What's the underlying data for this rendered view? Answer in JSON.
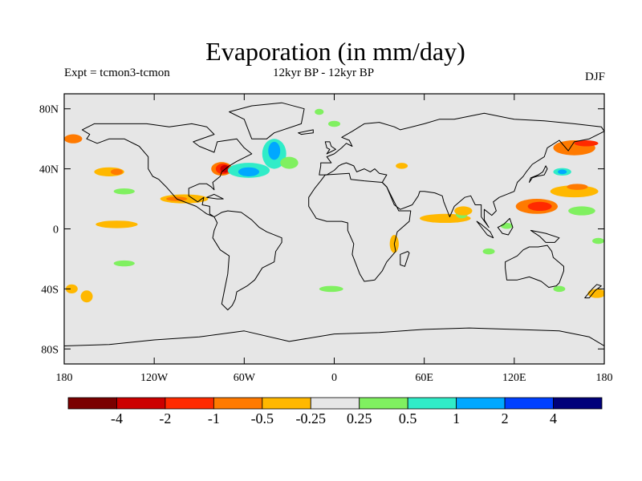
{
  "title": "Evaporation (in mm/day)",
  "subtitle_left": "Expt = tcmon3-tcmon",
  "subtitle_center": "12kyr BP - 12kyr BP",
  "subtitle_right": "DJF",
  "map": {
    "background_color": "#e6e6e6",
    "projection": "cylindrical-equidistant",
    "lon_range": [
      -180,
      180
    ],
    "lat_range": [
      -90,
      90
    ],
    "lon_ticks": [
      {
        "value": -180,
        "label": "180"
      },
      {
        "value": -120,
        "label": "120W"
      },
      {
        "value": -60,
        "label": "60W"
      },
      {
        "value": 0,
        "label": "0"
      },
      {
        "value": 60,
        "label": "60E"
      },
      {
        "value": 120,
        "label": "120E"
      },
      {
        "value": 180,
        "label": "180"
      }
    ],
    "lat_ticks": [
      {
        "value": 80,
        "label": "80N"
      },
      {
        "value": 40,
        "label": "40N"
      },
      {
        "value": 0,
        "label": "0"
      },
      {
        "value": -40,
        "label": "40S"
      },
      {
        "value": -80,
        "label": "80S"
      }
    ]
  },
  "colorbar": {
    "colors": [
      "#7a0000",
      "#cc0000",
      "#ff2a00",
      "#ff7a00",
      "#ffb800",
      "#e6e6e6",
      "#80f060",
      "#30ecc8",
      "#00a8ff",
      "#0040ff",
      "#00007a"
    ],
    "labels": [
      "-4",
      "-2",
      "-1",
      "-0.5",
      "-0.25",
      "0.25",
      "0.5",
      "1",
      "2",
      "4"
    ]
  },
  "anomalies": [
    {
      "lon": -75,
      "lat": 40,
      "rx": 7,
      "ry": 4.5,
      "color": "#ff7a00"
    },
    {
      "lon": -74,
      "lat": 40,
      "rx": 5,
      "ry": 3.5,
      "color": "#ff2a00"
    },
    {
      "lon": -73,
      "lat": 40,
      "rx": 3,
      "ry": 2.5,
      "color": "#cc0000"
    },
    {
      "lon": -57,
      "lat": 39,
      "rx": 14,
      "ry": 5,
      "color": "#30ecc8"
    },
    {
      "lon": -57,
      "lat": 38,
      "rx": 7,
      "ry": 3,
      "color": "#00a8ff"
    },
    {
      "lon": -40,
      "lat": 50,
      "rx": 8,
      "ry": 10,
      "color": "#30ecc8"
    },
    {
      "lon": -40,
      "lat": 52,
      "rx": 4,
      "ry": 6,
      "color": "#00a8ff"
    },
    {
      "lon": -30,
      "lat": 44,
      "rx": 6,
      "ry": 4,
      "color": "#80f060"
    },
    {
      "lon": -100,
      "lat": 20,
      "rx": 16,
      "ry": 3,
      "color": "#ffb800"
    },
    {
      "lon": -105,
      "lat": 20,
      "rx": 7,
      "ry": 1.5,
      "color": "#ff7a00"
    },
    {
      "lon": -145,
      "lat": 3,
      "rx": 14,
      "ry": 2.5,
      "color": "#ffb800"
    },
    {
      "lon": -150,
      "lat": 38,
      "rx": 10,
      "ry": 3,
      "color": "#ffb800"
    },
    {
      "lon": -145,
      "lat": 38,
      "rx": 4,
      "ry": 2,
      "color": "#ff7a00"
    },
    {
      "lon": -174,
      "lat": 60,
      "rx": 6,
      "ry": 3,
      "color": "#ff7a00"
    },
    {
      "lon": -140,
      "lat": 25,
      "rx": 7,
      "ry": 2,
      "color": "#80f060"
    },
    {
      "lon": -165,
      "lat": -45,
      "rx": 4,
      "ry": 4,
      "color": "#ffb800"
    },
    {
      "lon": -175,
      "lat": -40,
      "rx": 4,
      "ry": 3,
      "color": "#ffb800"
    },
    {
      "lon": -140,
      "lat": -23,
      "rx": 7,
      "ry": 2,
      "color": "#80f060"
    },
    {
      "lon": 74,
      "lat": 7,
      "rx": 17,
      "ry": 3,
      "color": "#ffb800"
    },
    {
      "lon": 85,
      "lat": 10,
      "rx": 4,
      "ry": 3,
      "color": "#80f060"
    },
    {
      "lon": 86,
      "lat": 12,
      "rx": 6,
      "ry": 3,
      "color": "#ffb800"
    },
    {
      "lon": 135,
      "lat": 15,
      "rx": 14,
      "ry": 5,
      "color": "#ff7a00"
    },
    {
      "lon": 137,
      "lat": 15,
      "rx": 8,
      "ry": 3,
      "color": "#ff2a00"
    },
    {
      "lon": 160,
      "lat": 25,
      "rx": 16,
      "ry": 4,
      "color": "#ffb800"
    },
    {
      "lon": 162,
      "lat": 28,
      "rx": 7,
      "ry": 2,
      "color": "#ff7a00"
    },
    {
      "lon": 152,
      "lat": 38,
      "rx": 6,
      "ry": 2.5,
      "color": "#30ecc8"
    },
    {
      "lon": 152,
      "lat": 38,
      "rx": 3,
      "ry": 1.5,
      "color": "#00a8ff"
    },
    {
      "lon": 160,
      "lat": 54,
      "rx": 14,
      "ry": 5,
      "color": "#ff7a00"
    },
    {
      "lon": 168,
      "lat": 57,
      "rx": 8,
      "ry": 2,
      "color": "#ff2a00"
    },
    {
      "lon": 165,
      "lat": 12,
      "rx": 9,
      "ry": 3,
      "color": "#80f060"
    },
    {
      "lon": 176,
      "lat": -8,
      "rx": 4,
      "ry": 2,
      "color": "#80f060"
    },
    {
      "lon": 175,
      "lat": -43,
      "rx": 6,
      "ry": 3,
      "color": "#ffb800"
    },
    {
      "lon": 150,
      "lat": -40,
      "rx": 4,
      "ry": 2,
      "color": "#80f060"
    },
    {
      "lon": 103,
      "lat": -15,
      "rx": 4,
      "ry": 2,
      "color": "#80f060"
    },
    {
      "lon": -2,
      "lat": -40,
      "rx": 8,
      "ry": 2,
      "color": "#80f060"
    },
    {
      "lon": 40,
      "lat": -10,
      "rx": 3,
      "ry": 6,
      "color": "#ffb800"
    },
    {
      "lon": 45,
      "lat": 42,
      "rx": 4,
      "ry": 2,
      "color": "#ffb800"
    },
    {
      "lon": 0,
      "lat": 70,
      "rx": 4,
      "ry": 2,
      "color": "#80f060"
    },
    {
      "lon": -10,
      "lat": 78,
      "rx": 3,
      "ry": 2,
      "color": "#80f060"
    },
    {
      "lon": 115,
      "lat": 2,
      "rx": 4,
      "ry": 2,
      "color": "#80f060"
    }
  ],
  "land": [
    [
      [
        -168,
        66
      ],
      [
        -160,
        70
      ],
      [
        -140,
        70
      ],
      [
        -125,
        70
      ],
      [
        -110,
        68
      ],
      [
        -95,
        70
      ],
      [
        -85,
        68
      ],
      [
        -80,
        63
      ],
      [
        -94,
        58
      ],
      [
        -90,
        55
      ],
      [
        -80,
        51
      ],
      [
        -78,
        58
      ],
      [
        -65,
        60
      ],
      [
        -60,
        54
      ],
      [
        -55,
        50
      ],
      [
        -65,
        45
      ],
      [
        -70,
        42
      ],
      [
        -75,
        38
      ],
      [
        -76,
        35
      ],
      [
        -81,
        31
      ],
      [
        -80,
        26
      ],
      [
        -82,
        28
      ],
      [
        -85,
        30
      ],
      [
        -90,
        30
      ],
      [
        -97,
        27
      ],
      [
        -97,
        22
      ],
      [
        -91,
        18
      ],
      [
        -87,
        21
      ],
      [
        -88,
        16
      ],
      [
        -83,
        15
      ],
      [
        -83,
        10
      ],
      [
        -80,
        8
      ],
      [
        -85,
        10
      ],
      [
        -92,
        15
      ],
      [
        -105,
        20
      ],
      [
        -112,
        28
      ],
      [
        -115,
        31
      ],
      [
        -117,
        33
      ],
      [
        -121,
        35
      ],
      [
        -124,
        40
      ],
      [
        -124,
        48
      ],
      [
        -130,
        55
      ],
      [
        -140,
        60
      ],
      [
        -150,
        60
      ],
      [
        -158,
        57
      ],
      [
        -165,
        60
      ],
      [
        -163,
        63
      ]
    ],
    [
      [
        -80,
        8
      ],
      [
        -75,
        11
      ],
      [
        -71,
        12
      ],
      [
        -62,
        11
      ],
      [
        -55,
        6
      ],
      [
        -50,
        1
      ],
      [
        -45,
        -2
      ],
      [
        -35,
        -6
      ],
      [
        -35,
        -9
      ],
      [
        -39,
        -15
      ],
      [
        -40,
        -22
      ],
      [
        -48,
        -26
      ],
      [
        -53,
        -34
      ],
      [
        -58,
        -38
      ],
      [
        -65,
        -42
      ],
      [
        -66,
        -47
      ],
      [
        -68,
        -51
      ],
      [
        -71,
        -54
      ],
      [
        -75,
        -50
      ],
      [
        -73,
        -40
      ],
      [
        -71,
        -30
      ],
      [
        -70,
        -18
      ],
      [
        -76,
        -14
      ],
      [
        -81,
        -6
      ],
      [
        -80,
        -1
      ],
      [
        -78,
        4
      ]
    ],
    [
      [
        -55,
        60
      ],
      [
        -45,
        60
      ],
      [
        -40,
        64
      ],
      [
        -22,
        70
      ],
      [
        -20,
        80
      ],
      [
        -35,
        84
      ],
      [
        -55,
        82
      ],
      [
        -70,
        78
      ],
      [
        -60,
        73
      ]
    ],
    [
      [
        -10,
        36
      ],
      [
        -9,
        42
      ],
      [
        -9,
        44
      ],
      [
        -2,
        44
      ],
      [
        -5,
        48
      ],
      [
        0,
        50
      ],
      [
        5,
        54
      ],
      [
        8,
        57
      ],
      [
        12,
        55
      ],
      [
        10,
        59
      ],
      [
        5,
        61
      ],
      [
        12,
        65
      ],
      [
        20,
        70
      ],
      [
        30,
        71
      ],
      [
        40,
        68
      ],
      [
        44,
        66
      ],
      [
        60,
        70
      ],
      [
        70,
        73
      ],
      [
        80,
        73
      ],
      [
        100,
        77
      ],
      [
        120,
        73
      ],
      [
        140,
        72
      ],
      [
        160,
        70
      ],
      [
        178,
        68
      ],
      [
        180,
        65
      ],
      [
        170,
        60
      ],
      [
        160,
        58
      ],
      [
        156,
        52
      ],
      [
        150,
        59
      ],
      [
        142,
        54
      ],
      [
        140,
        48
      ],
      [
        132,
        43
      ],
      [
        128,
        38
      ],
      [
        126,
        35
      ],
      [
        122,
        31
      ],
      [
        120,
        25
      ],
      [
        110,
        21
      ],
      [
        106,
        18
      ],
      [
        108,
        12
      ],
      [
        105,
        9
      ],
      [
        100,
        13
      ],
      [
        100,
        6
      ],
      [
        103,
        1
      ],
      [
        98,
        8
      ],
      [
        98,
        16
      ],
      [
        94,
        16
      ],
      [
        91,
        22
      ],
      [
        87,
        21
      ],
      [
        80,
        15
      ],
      [
        77,
        8
      ],
      [
        73,
        18
      ],
      [
        72,
        22
      ],
      [
        67,
        24
      ],
      [
        60,
        25
      ],
      [
        57,
        25
      ],
      [
        56,
        22
      ],
      [
        52,
        16
      ],
      [
        44,
        13
      ],
      [
        40,
        16
      ],
      [
        35,
        28
      ],
      [
        32,
        31
      ],
      [
        35,
        36
      ],
      [
        30,
        37
      ],
      [
        27,
        40
      ],
      [
        24,
        38
      ],
      [
        20,
        40
      ],
      [
        15,
        38
      ],
      [
        13,
        42
      ],
      [
        8,
        44
      ],
      [
        5,
        43
      ],
      [
        3,
        42
      ],
      [
        0,
        39
      ],
      [
        -5,
        36
      ]
    ],
    [
      [
        -17,
        15
      ],
      [
        -17,
        21
      ],
      [
        -13,
        27
      ],
      [
        -9,
        32
      ],
      [
        -6,
        36
      ],
      [
        10,
        37
      ],
      [
        11,
        33
      ],
      [
        20,
        32
      ],
      [
        32,
        31
      ],
      [
        35,
        28
      ],
      [
        43,
        12
      ],
      [
        51,
        12
      ],
      [
        50,
        5
      ],
      [
        42,
        -2
      ],
      [
        40,
        -10
      ],
      [
        41,
        -15
      ],
      [
        35,
        -22
      ],
      [
        32,
        -28
      ],
      [
        27,
        -34
      ],
      [
        20,
        -35
      ],
      [
        17,
        -30
      ],
      [
        12,
        -17
      ],
      [
        13,
        -10
      ],
      [
        9,
        -1
      ],
      [
        9,
        4
      ],
      [
        5,
        5
      ],
      [
        -5,
        5
      ],
      [
        -12,
        7
      ]
    ],
    [
      [
        114,
        -22
      ],
      [
        114,
        -26
      ],
      [
        115,
        -34
      ],
      [
        122,
        -34
      ],
      [
        130,
        -32
      ],
      [
        138,
        -35
      ],
      [
        143,
        -39
      ],
      [
        148,
        -38
      ],
      [
        150,
        -36
      ],
      [
        153,
        -28
      ],
      [
        153,
        -25
      ],
      [
        146,
        -19
      ],
      [
        145,
        -15
      ],
      [
        142,
        -11
      ],
      [
        136,
        -12
      ],
      [
        130,
        -12
      ],
      [
        126,
        -14
      ],
      [
        122,
        -18
      ]
    ],
    [
      [
        -180,
        -78
      ],
      [
        -150,
        -77
      ],
      [
        -120,
        -74
      ],
      [
        -90,
        -72
      ],
      [
        -60,
        -68
      ],
      [
        -30,
        -75
      ],
      [
        0,
        -70
      ],
      [
        30,
        -69
      ],
      [
        60,
        -67
      ],
      [
        90,
        -66
      ],
      [
        120,
        -67
      ],
      [
        150,
        -68
      ],
      [
        170,
        -72
      ],
      [
        180,
        -78
      ],
      [
        180,
        -90
      ],
      [
        -180,
        -90
      ]
    ],
    [
      [
        49,
        -15
      ],
      [
        50,
        -16
      ],
      [
        47,
        -25
      ],
      [
        44,
        -24
      ],
      [
        44,
        -17
      ]
    ],
    [
      [
        -5,
        50
      ],
      [
        -3,
        51
      ],
      [
        1,
        53
      ],
      [
        -2,
        55
      ],
      [
        -3,
        58
      ],
      [
        -6,
        58
      ],
      [
        -5,
        54
      ],
      [
        -3,
        53
      ]
    ],
    [
      [
        130,
        31
      ],
      [
        132,
        34
      ],
      [
        135,
        35
      ],
      [
        140,
        36
      ],
      [
        142,
        40
      ],
      [
        141,
        42
      ],
      [
        139,
        38
      ],
      [
        136,
        36
      ],
      [
        131,
        34
      ]
    ],
    [
      [
        95,
        5
      ],
      [
        98,
        3
      ],
      [
        104,
        -2
      ],
      [
        106,
        -6
      ],
      [
        102,
        -4
      ]
    ],
    [
      [
        109,
        1
      ],
      [
        112,
        -3
      ],
      [
        116,
        -4
      ],
      [
        119,
        1
      ],
      [
        117,
        7
      ],
      [
        113,
        3
      ]
    ],
    [
      [
        131,
        -1
      ],
      [
        141,
        -3
      ],
      [
        150,
        -6
      ],
      [
        147,
        -9
      ],
      [
        141,
        -9
      ],
      [
        137,
        -5
      ]
    ],
    [
      [
        172,
        -40
      ],
      [
        175,
        -37
      ],
      [
        178,
        -38
      ],
      [
        174,
        -41
      ],
      [
        170,
        -46
      ],
      [
        167,
        -46
      ]
    ],
    [
      [
        -24,
        64
      ],
      [
        -14,
        66
      ],
      [
        -14,
        64
      ],
      [
        -22,
        63
      ]
    ],
    [
      [
        -85,
        21
      ],
      [
        -80,
        23
      ],
      [
        -74,
        20
      ],
      [
        -78,
        20
      ]
    ]
  ]
}
